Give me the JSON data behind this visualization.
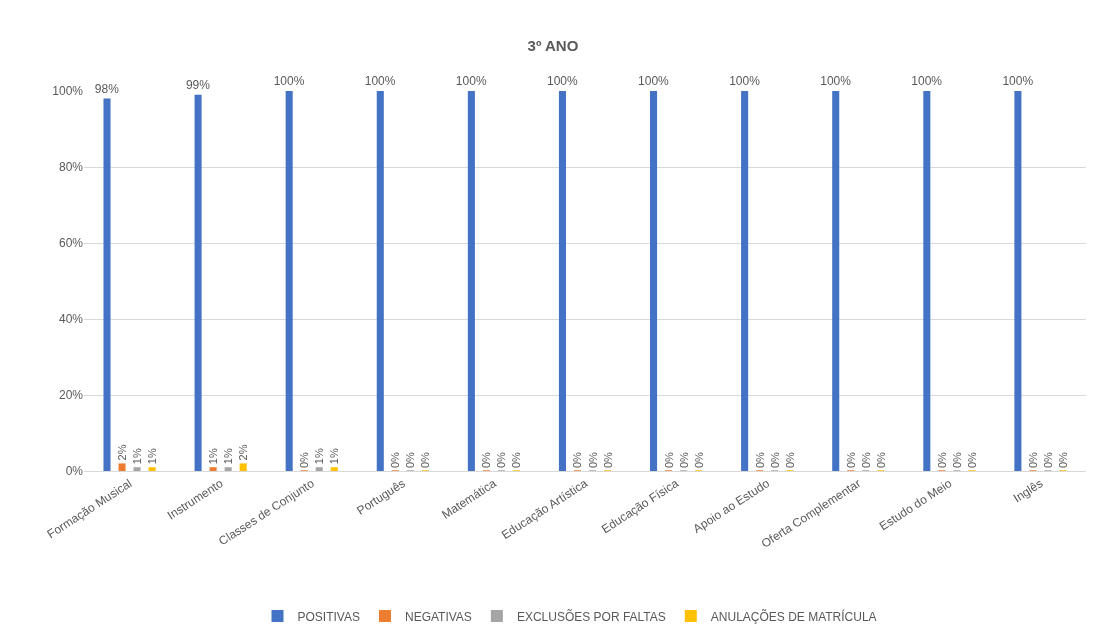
{
  "chart_data": {
    "type": "bar",
    "title": "3º ANO",
    "categories": [
      "Formação Musical",
      "Instrumento",
      "Classes de Conjunto",
      "Português",
      "Matemática",
      "Educação Artística",
      "Educação Física",
      "Apoio ao Estudo",
      "Oferta Complementar",
      "Estudo do Meio",
      "Inglês"
    ],
    "series": [
      {
        "name": "POSITIVAS",
        "color": "#4472c4",
        "values": [
          98,
          99,
          100,
          100,
          100,
          100,
          100,
          100,
          100,
          100,
          100
        ],
        "value_labels": [
          "98%",
          "99%",
          "100%",
          "100%",
          "100%",
          "100%",
          "100%",
          "100%",
          "100%",
          "100%",
          "100%"
        ]
      },
      {
        "name": "NEGATIVAS",
        "color": "#ed7d31",
        "values": [
          2,
          1,
          0,
          0,
          0,
          0,
          0,
          0,
          0,
          0,
          0
        ],
        "value_labels": [
          "2%",
          "1%",
          "0%",
          "0%",
          "0%",
          "0%",
          "0%",
          "0%",
          "0%",
          "0%",
          "0%"
        ]
      },
      {
        "name": "EXCLUSÕES POR FALTAS",
        "color": "#a5a5a5",
        "values": [
          1,
          1,
          1,
          0,
          0,
          0,
          0,
          0,
          0,
          0,
          0
        ],
        "value_labels": [
          "1%",
          "1%",
          "1%",
          "0%",
          "0%",
          "0%",
          "0%",
          "0%",
          "0%",
          "0%",
          "0%"
        ]
      },
      {
        "name": "ANULAÇÕES DE MATRÍCULA",
        "color": "#ffc000",
        "values": [
          1,
          2,
          1,
          0,
          0,
          0,
          0,
          0,
          0,
          0,
          0
        ],
        "value_labels": [
          "1%",
          "2%",
          "1%",
          "0%",
          "0%",
          "0%",
          "0%",
          "0%",
          "0%",
          "0%",
          "0%"
        ]
      }
    ],
    "ylim": [
      0,
      100
    ],
    "yticks": [
      {
        "value": 0,
        "label": "0%"
      },
      {
        "value": 20,
        "label": "20%"
      },
      {
        "value": 40,
        "label": "40%"
      },
      {
        "value": 60,
        "label": "60%"
      },
      {
        "value": 80,
        "label": "80%"
      },
      {
        "value": 100,
        "label": "100%"
      }
    ],
    "grid": "y",
    "legend": "bottom"
  }
}
